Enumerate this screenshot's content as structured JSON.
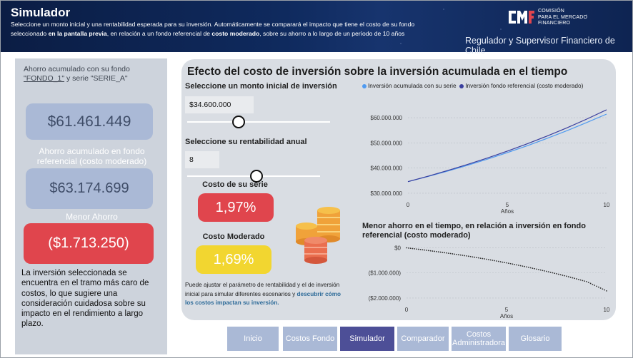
{
  "header": {
    "title": "Simulador",
    "desc_1": "Seleccione un monto inicial y una rentabilidad esperada para su inversión. Automáticamente se comparará el impacto que tiene el costo de su fondo seleccionado ",
    "desc_b1": "en la pantalla previa",
    "desc_2": ", en relación a un fondo referencial de ",
    "desc_b2": "costo moderado",
    "desc_3": ", sobre su ahorro a lo largo de un período de 10 años",
    "logo_text_1": "COMISIÓN",
    "logo_text_2": "PARA EL MERCADO",
    "logo_text_3": "FINANCIERO",
    "tagline": "Regulador y Supervisor Financiero de Chile"
  },
  "left": {
    "label_pre": "Ahorro acumulado con su fondo ",
    "fund_name": "\"FONDO_1\"",
    "label_mid": " y serie ",
    "serie_name": "\"SERIE_A\"",
    "own_value": "$61.461.449",
    "ref_label": "Ahorro acumulado en fondo referencial (costo moderado)",
    "ref_value": "$63.174.699",
    "diff_label": "Menor Ahorro",
    "diff_value": "($1.713.250)",
    "note": "La inversión seleccionada se encuentra en el tramo más caro de costos, lo que sugiere una consideración cuidadosa sobre su impacto en el rendimiento a largo plazo."
  },
  "main": {
    "title": "Efecto del costo de inversión sobre la inversión acumulada en el tiempo",
    "amount_label": "Seleccione un monto inicial de inversión",
    "amount_value": "$34.600.000",
    "amount_slider_fraction": 0.36,
    "rate_label": "Seleccione su rentabilidad anual",
    "rate_value": "8",
    "rate_slider_fraction": 0.52,
    "cost_serie_label": "Costo de su serie",
    "cost_serie_value": "1,97%",
    "cost_mod_label": "Costo Moderado",
    "cost_mod_value": "1,69%",
    "note_1": "Puede ajustar el parámetro de rentabilidad y el de inversión inicial para simular diferentes escenarios y ",
    "note_2": "descubrir cómo los costos impactan su inversión."
  },
  "chart_data": [
    {
      "type": "line",
      "title": "",
      "xlabel": "Años",
      "ylabel": "",
      "x_ticks": [
        "0",
        "5",
        "10"
      ],
      "y_ticks": [
        "$30.000.000",
        "$40.000.000",
        "$50.000.000",
        "$60.000.000"
      ],
      "xlim": [
        0,
        10
      ],
      "ylim": [
        28000000,
        64000000
      ],
      "legend_position": "top",
      "grid": "horizontal",
      "series": [
        {
          "name": "Inversión acumulada con su serie",
          "color": "#4f9af0",
          "x": [
            0,
            1,
            2,
            3,
            4,
            5,
            6,
            7,
            8,
            9,
            10
          ],
          "values": [
            34600000,
            36643000,
            38810000,
            41108000,
            43545000,
            46128000,
            48867000,
            51771000,
            54851000,
            58116000,
            61461449
          ]
        },
        {
          "name": "Inversión fondo referencial (costo moderado)",
          "color": "#3a3f9e",
          "x": [
            0,
            1,
            2,
            3,
            4,
            5,
            6,
            7,
            8,
            9,
            10
          ],
          "values": [
            34600000,
            36740000,
            39014000,
            41430000,
            43998000,
            46727000,
            49626000,
            52707000,
            55981000,
            59460000,
            63174699
          ]
        }
      ]
    },
    {
      "type": "line",
      "title": "Menor ahorro en el tiempo, en relación a inversión en fondo referencial (costo moderado)",
      "xlabel": "Años",
      "ylabel": "",
      "x_ticks": [
        "0",
        "5",
        "10"
      ],
      "y_ticks": [
        "$0",
        "($1.000.000)",
        "($2.000.000)"
      ],
      "xlim": [
        0,
        10
      ],
      "ylim": [
        -2200000,
        100000
      ],
      "grid": "horizontal",
      "series": [
        {
          "name": "",
          "color": "#333333",
          "style": "dotted",
          "x": [
            0,
            1,
            2,
            3,
            4,
            5,
            6,
            7,
            8,
            9,
            10
          ],
          "values": [
            0,
            -97000,
            -204000,
            -322000,
            -453000,
            -599000,
            -759000,
            -936000,
            -1130000,
            -1344000,
            -1713250
          ]
        }
      ]
    }
  ],
  "nav": {
    "items": [
      "Inicio",
      "Costos Fondo",
      "Simulador",
      "Comparador",
      "Costos Administradora",
      "Glosario"
    ],
    "active": "Simulador",
    "inactive_color": "#aab9d6",
    "active_color": "#4d4f97"
  }
}
